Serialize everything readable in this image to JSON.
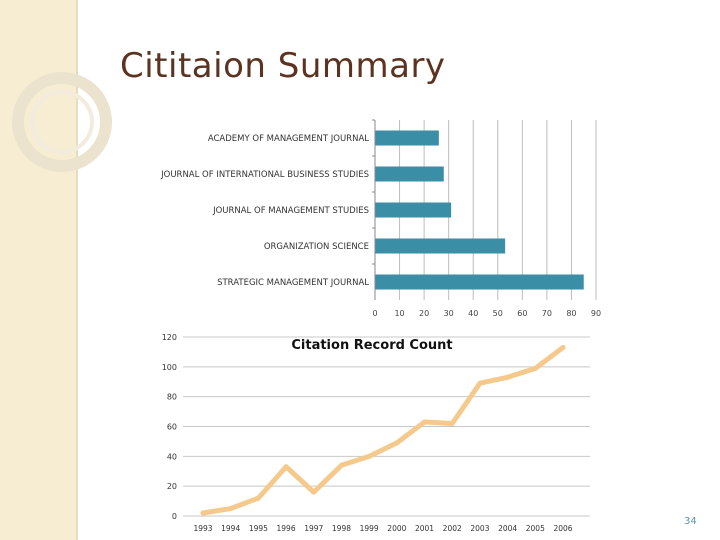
{
  "slide": {
    "title": "Cititaion Summary",
    "page_number": "34"
  },
  "chart_data": [
    {
      "type": "bar",
      "orientation": "horizontal",
      "title": "",
      "categories": [
        "ACADEMY OF MANAGEMENT JOURNAL",
        "JOURNAL OF INTERNATIONAL BUSINESS STUDIES",
        "JOURNAL OF MANAGEMENT STUDIES",
        "ORGANIZATION SCIENCE",
        "STRATEGIC MANAGEMENT JOURNAL"
      ],
      "values": [
        26,
        28,
        31,
        53,
        85
      ],
      "xlim": [
        0,
        90
      ],
      "xticks": [
        "0",
        "10",
        "20",
        "30",
        "40",
        "50",
        "60",
        "70",
        "80",
        "90"
      ],
      "xlabel": "",
      "ylabel": "",
      "grid": true,
      "color": "#3a8fa6"
    },
    {
      "type": "line",
      "title": "Citation Record Count",
      "x": [
        "1993",
        "1994",
        "1995",
        "1996",
        "1997",
        "1998",
        "1999",
        "2000",
        "2001",
        "2002",
        "2003",
        "2004",
        "2005",
        "2006"
      ],
      "y": [
        2,
        5,
        12,
        33,
        16,
        34,
        40,
        49,
        63,
        62,
        89,
        93,
        99,
        113
      ],
      "ylim": [
        0,
        120
      ],
      "yticks": [
        "0",
        "20",
        "40",
        "60",
        "80",
        "100",
        "120"
      ],
      "xlabel": "",
      "ylabel": "",
      "grid": true,
      "color": "#f5c98b"
    }
  ]
}
